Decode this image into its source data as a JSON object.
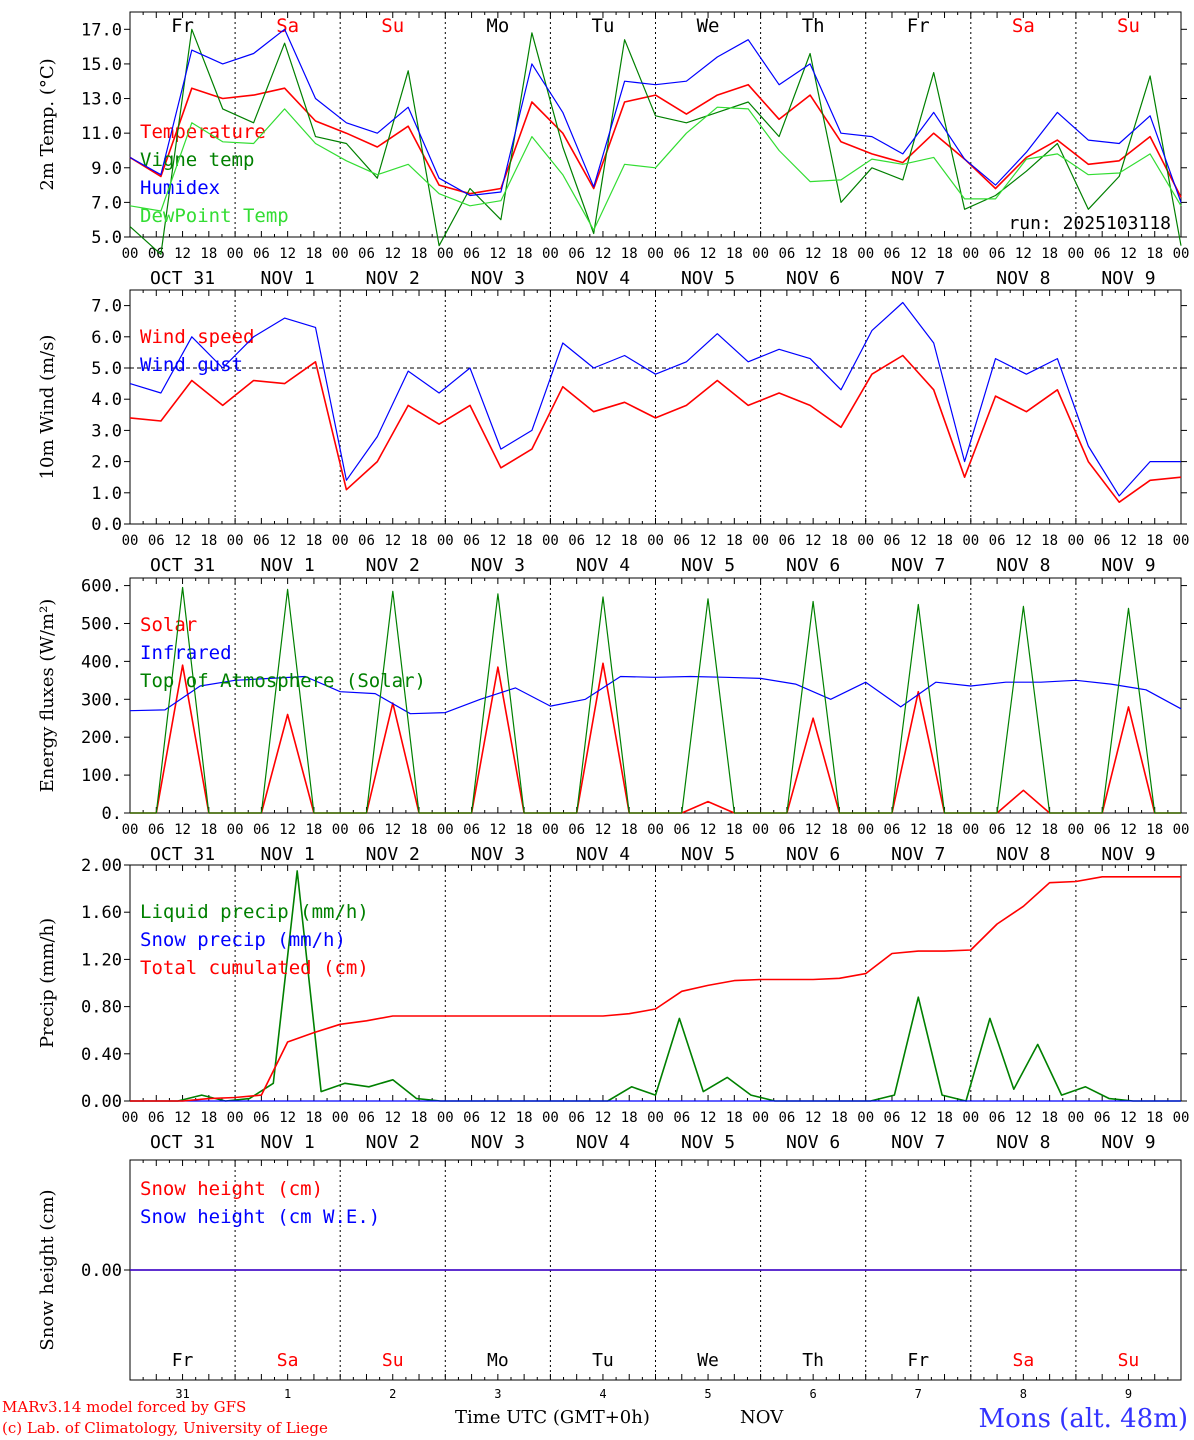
{
  "footer": {
    "credit1": "MARv3.14 model forced by GFS",
    "credit2": "(c) Lab. of Climatology, University of Liege",
    "axis_title": "Time UTC (GMT+0h)",
    "month": "NOV",
    "station": "Mons (alt. 48m)"
  },
  "colors": {
    "red": "#ff0000",
    "green": "#008000",
    "blue": "#0000ff",
    "lightgreen": "#33dd33",
    "weekend": "#ff0000",
    "weekday": "#000000",
    "station": "#3333ff"
  },
  "day_names": [
    "Fr",
    "Sa",
    "Su",
    "Mo",
    "Tu",
    "We",
    "Th",
    "Fr",
    "Sa",
    "Su"
  ],
  "weekend_flags": [
    false,
    true,
    true,
    false,
    false,
    false,
    false,
    false,
    true,
    true
  ],
  "date_labels": [
    "OCT 31",
    "NOV 1",
    "NOV 2",
    "NOV 3",
    "NOV 4",
    "NOV 5",
    "NOV 6",
    "NOV 7",
    "NOV 8",
    "NOV 9"
  ],
  "day_numbers": [
    "31",
    "1",
    "2",
    "3",
    "4",
    "5",
    "6",
    "7",
    "8",
    "9"
  ],
  "hour_labels": [
    "00",
    "06",
    "12",
    "18"
  ],
  "final_hour_label": "00",
  "chart_data": [
    {
      "type": "line",
      "ylabel": "2m Temp. (°C)",
      "ylim": [
        5,
        18
      ],
      "yticks": [
        "5.0",
        "7.0",
        "9.0",
        "11.0",
        "13.0",
        "15.0",
        "17.0"
      ],
      "ytick_values": [
        5,
        7,
        9,
        11,
        13,
        15,
        17
      ],
      "annotation": "run: 2025103118",
      "x_unit": "hours since 2025-10-31 00 UTC, every 6 h",
      "series": [
        {
          "name": "Temperature",
          "color": "red",
          "values": [
            9.6,
            8.5,
            13.6,
            13.0,
            13.2,
            13.6,
            11.7,
            11.0,
            10.2,
            11.4,
            8.0,
            7.5,
            7.8,
            12.8,
            11.0,
            7.8,
            12.8,
            13.2,
            12.1,
            13.2,
            13.8,
            11.8,
            13.2,
            10.5,
            9.8,
            9.3,
            11.0,
            9.5,
            7.8,
            9.6,
            10.6,
            9.2,
            9.4,
            10.8,
            7.3
          ]
        },
        {
          "name": "Vigne temp",
          "color": "green",
          "values": [
            5.6,
            4.0,
            17.0,
            12.4,
            11.6,
            16.2,
            10.8,
            10.4,
            8.4,
            14.6,
            4.5,
            7.8,
            6.0,
            16.8,
            10.2,
            5.2,
            16.4,
            12.0,
            11.6,
            12.2,
            12.8,
            10.8,
            15.6,
            7.0,
            9.0,
            8.3,
            14.5,
            6.6,
            7.4,
            8.8,
            10.4,
            6.6,
            8.5,
            14.3,
            4.5
          ]
        },
        {
          "name": "Humidex",
          "color": "blue",
          "values": [
            9.6,
            8.6,
            15.8,
            15.0,
            15.6,
            17.0,
            13.0,
            11.6,
            11.0,
            12.5,
            8.4,
            7.4,
            7.6,
            15.0,
            12.2,
            7.9,
            14.0,
            13.8,
            14.0,
            15.4,
            16.4,
            13.8,
            15.0,
            11.0,
            10.8,
            9.8,
            12.2,
            9.5,
            8.0,
            9.9,
            12.2,
            10.6,
            10.4,
            12.0,
            7.0
          ]
        },
        {
          "name": "DewPoint Temp",
          "color": "lightgreen",
          "values": [
            6.8,
            6.5,
            11.6,
            10.5,
            10.4,
            12.4,
            10.4,
            9.4,
            8.6,
            9.2,
            7.5,
            6.8,
            7.1,
            10.8,
            8.6,
            5.4,
            9.2,
            9.0,
            11.0,
            12.5,
            12.4,
            10.0,
            8.2,
            8.3,
            9.5,
            9.2,
            9.6,
            7.2,
            7.2,
            9.5,
            9.8,
            8.6,
            8.7,
            9.8,
            6.8
          ]
        }
      ]
    },
    {
      "type": "line",
      "ylabel": "10m Wind (m/s)",
      "ylim": [
        0,
        7.5
      ],
      "yticks": [
        "0.0",
        "1.0",
        "2.0",
        "3.0",
        "4.0",
        "5.0",
        "6.0",
        "7.0"
      ],
      "ytick_values": [
        0,
        1,
        2,
        3,
        4,
        5,
        6,
        7
      ],
      "reference_line": 5.0,
      "x_unit": "hours since 2025-10-31 00 UTC, every 6 h",
      "series": [
        {
          "name": "Wind speed",
          "color": "red",
          "values": [
            3.4,
            3.3,
            4.6,
            3.8,
            4.6,
            4.5,
            5.2,
            1.1,
            2.0,
            3.8,
            3.2,
            3.8,
            1.8,
            2.4,
            4.4,
            3.6,
            3.9,
            3.4,
            3.8,
            4.6,
            3.8,
            4.2,
            3.8,
            3.1,
            4.8,
            5.4,
            4.3,
            1.5,
            4.1,
            3.6,
            4.3,
            2.0,
            0.7,
            1.4,
            1.5
          ]
        },
        {
          "name": "Wind gust",
          "color": "blue",
          "values": [
            4.5,
            4.2,
            6.0,
            5.0,
            6.0,
            6.6,
            6.3,
            1.4,
            2.8,
            4.9,
            4.2,
            5.0,
            2.4,
            3.0,
            5.8,
            5.0,
            5.4,
            4.8,
            5.2,
            6.1,
            5.2,
            5.6,
            5.3,
            4.3,
            6.2,
            7.1,
            5.8,
            2.0,
            5.3,
            4.8,
            5.3,
            2.5,
            0.9,
            2.0,
            2.0
          ]
        }
      ]
    },
    {
      "type": "line",
      "ylabel": "Energy fluxes (W/m²)",
      "ylim": [
        0,
        620
      ],
      "yticks": [
        "0.",
        "100.",
        "200.",
        "300.",
        "400.",
        "500.",
        "600."
      ],
      "ytick_values": [
        0,
        100,
        200,
        300,
        400,
        500,
        600
      ],
      "x_unit": "hours since 2025-10-31 00 UTC, every 6 h",
      "series": [
        {
          "name": "Solar",
          "color": "red",
          "values": [
            0,
            0,
            390,
            0,
            0,
            0,
            260,
            0,
            0,
            0,
            290,
            0,
            0,
            0,
            385,
            0,
            0,
            0,
            395,
            0,
            0,
            0,
            30,
            0,
            0,
            0,
            250,
            0,
            0,
            0,
            320,
            0,
            0,
            0,
            60,
            0,
            0,
            0,
            280,
            0,
            0
          ]
        },
        {
          "name": "Infrared",
          "color": "blue",
          "values": [
            270,
            272,
            335,
            350,
            355,
            360,
            320,
            315,
            262,
            265,
            300,
            330,
            282,
            300,
            360,
            358,
            360,
            358,
            355,
            340,
            300,
            345,
            280,
            345,
            335,
            345,
            345,
            350,
            340,
            325,
            275
          ]
        },
        {
          "name": "Top of Atmosphere (Solar)",
          "color": "green",
          "values": [
            0,
            0,
            595,
            0,
            0,
            0,
            590,
            0,
            0,
            0,
            585,
            0,
            0,
            0,
            578,
            0,
            0,
            0,
            570,
            0,
            0,
            0,
            565,
            0,
            0,
            0,
            558,
            0,
            0,
            0,
            550,
            0,
            0,
            0,
            545,
            0,
            0,
            0,
            540,
            0,
            0
          ]
        }
      ]
    },
    {
      "type": "line",
      "ylabel": "Precip (mm/h)",
      "ylim": [
        0,
        2.0
      ],
      "yticks": [
        "0.00",
        "0.40",
        "0.80",
        "1.20",
        "1.60",
        "2.00"
      ],
      "ytick_values": [
        0,
        0.4,
        0.8,
        1.2,
        1.6,
        2.0
      ],
      "x_unit": "hours since 2025-10-31 00 UTC, every 6 h",
      "series": [
        {
          "name": "Liquid precip (mm/h)",
          "color": "green",
          "values": [
            0,
            0,
            0,
            0.05,
            0,
            0.02,
            0.15,
            1.95,
            0.08,
            0.15,
            0.12,
            0.18,
            0.02,
            0,
            0,
            0,
            0,
            0,
            0,
            0,
            0,
            0.12,
            0.05,
            0.7,
            0.08,
            0.2,
            0.05,
            0,
            0,
            0,
            0,
            0,
            0.05,
            0.88,
            0.05,
            0,
            0.7,
            0.1,
            0.48,
            0.05,
            0.12,
            0.02,
            0,
            0,
            0
          ]
        },
        {
          "name": "Snow precip (mm/h)",
          "color": "blue",
          "values": [
            0,
            0
          ]
        },
        {
          "name": "Total cumulated (cm)",
          "color": "red",
          "values": [
            0,
            0,
            0,
            0.02,
            0.03,
            0.05,
            0.5,
            0.58,
            0.65,
            0.68,
            0.72,
            0.72,
            0.72,
            0.72,
            0.72,
            0.72,
            0.72,
            0.72,
            0.72,
            0.74,
            0.78,
            0.93,
            0.98,
            1.02,
            1.03,
            1.03,
            1.03,
            1.04,
            1.08,
            1.25,
            1.27,
            1.27,
            1.28,
            1.5,
            1.65,
            1.85,
            1.86,
            1.9,
            1.9,
            1.9,
            1.9
          ]
        }
      ]
    },
    {
      "type": "line",
      "ylabel": "Snow height (cm)",
      "ylim": [
        -1,
        1
      ],
      "yticks": [
        "0.00"
      ],
      "ytick_values": [
        0
      ],
      "x_unit": "hours since 2025-10-31 00 UTC, every 6 h",
      "series": [
        {
          "name": "Snow height (cm)",
          "color": "red",
          "values": [
            0,
            0
          ]
        },
        {
          "name": "Snow height (cm W.E.)",
          "color": "blue",
          "values": [
            0,
            0
          ]
        }
      ]
    }
  ]
}
